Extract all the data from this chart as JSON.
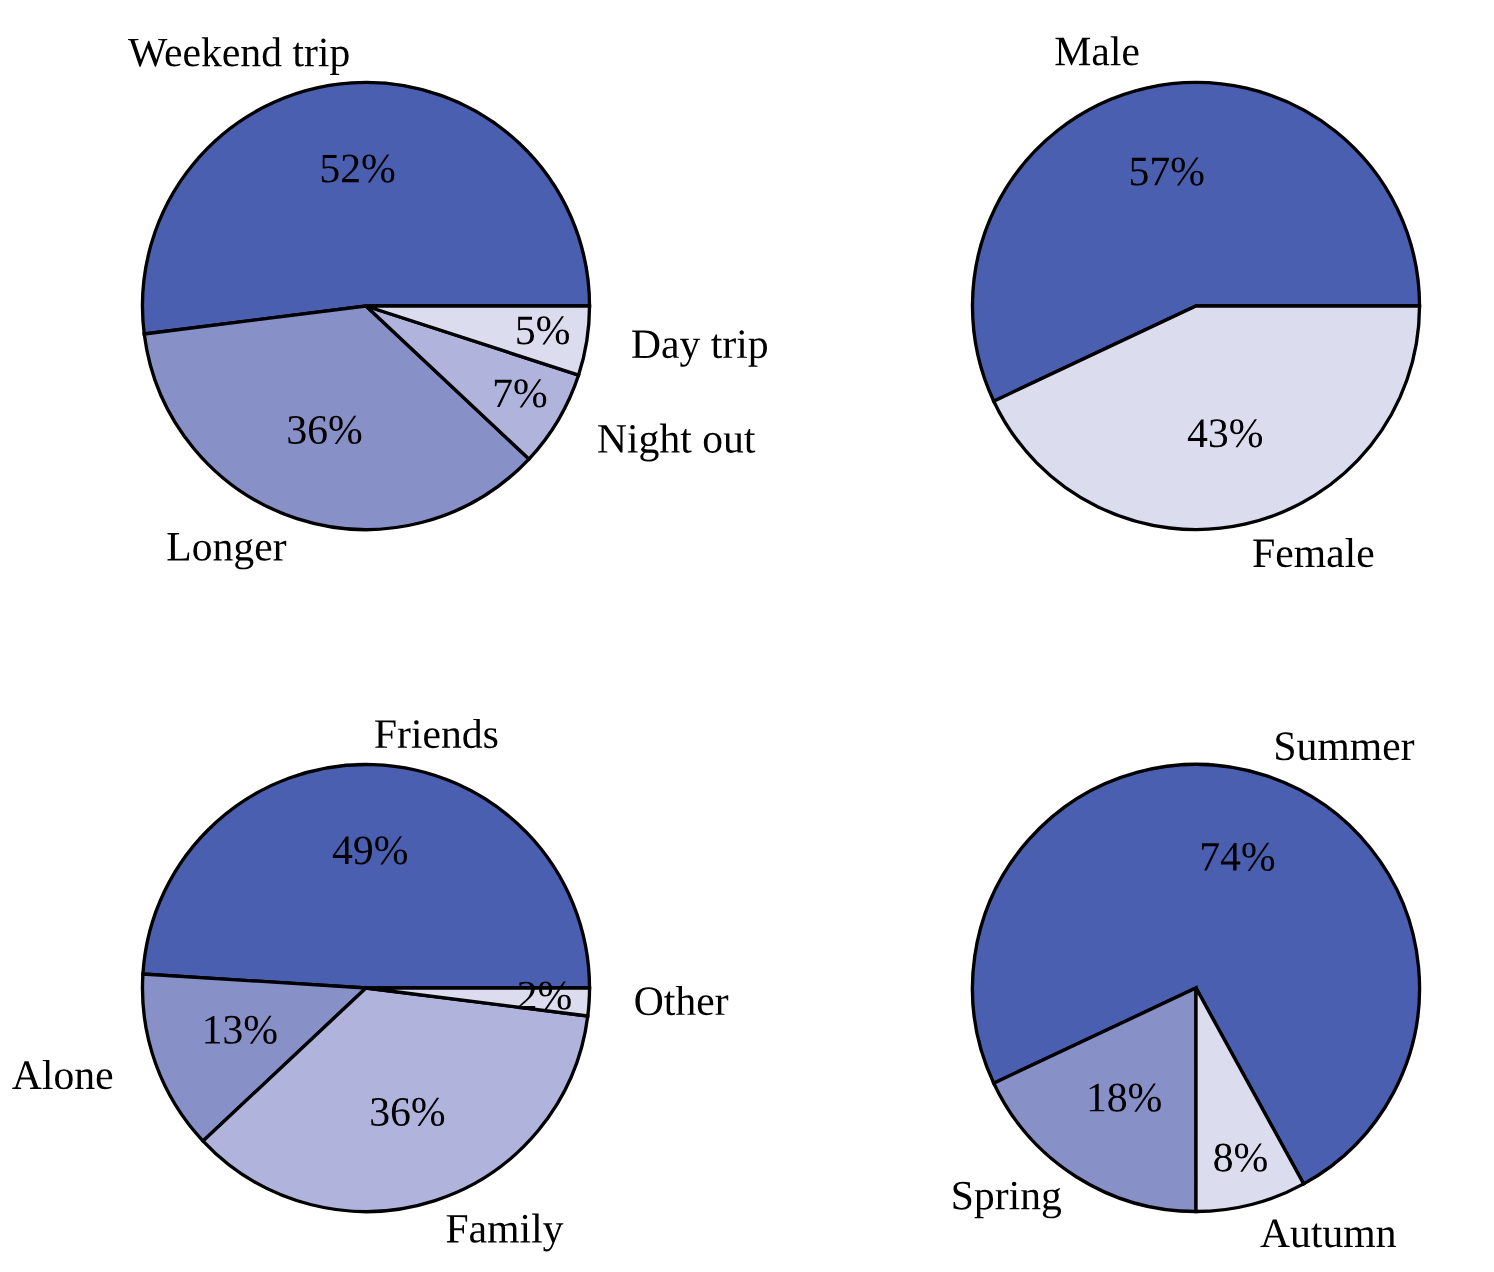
{
  "chart_data": [
    {
      "type": "pie",
      "categories": [
        "Weekend trip",
        "Longer",
        "Night out",
        "Day trip"
      ],
      "values": [
        52,
        36,
        7,
        5
      ],
      "value_labels": [
        "52%",
        "36%",
        "7%",
        "5%"
      ],
      "colors": [
        "#4a5fb0",
        "#8890c8",
        "#b0b4dc",
        "#dcdcef"
      ]
    },
    {
      "type": "pie",
      "categories": [
        "Male",
        "Female"
      ],
      "values": [
        57,
        43
      ],
      "value_labels": [
        "57%",
        "43%"
      ],
      "colors": [
        "#4a5fb0",
        "#dcdcef"
      ]
    },
    {
      "type": "pie",
      "categories": [
        "Friends",
        "Alone",
        "Family",
        "Other"
      ],
      "values": [
        49,
        13,
        36,
        2
      ],
      "value_labels": [
        "49%",
        "13%",
        "36%",
        "2%"
      ],
      "colors": [
        "#4a5fb0",
        "#8890c8",
        "#b0b4dc",
        "#dcdcef"
      ]
    },
    {
      "type": "pie",
      "categories": [
        "Summer",
        "Spring",
        "Autumn"
      ],
      "values": [
        74,
        18,
        8
      ],
      "value_labels": [
        "74%",
        "18%",
        "8%"
      ],
      "colors": [
        "#4a5fb0",
        "#8890c8",
        "#dcdcef"
      ]
    }
  ]
}
